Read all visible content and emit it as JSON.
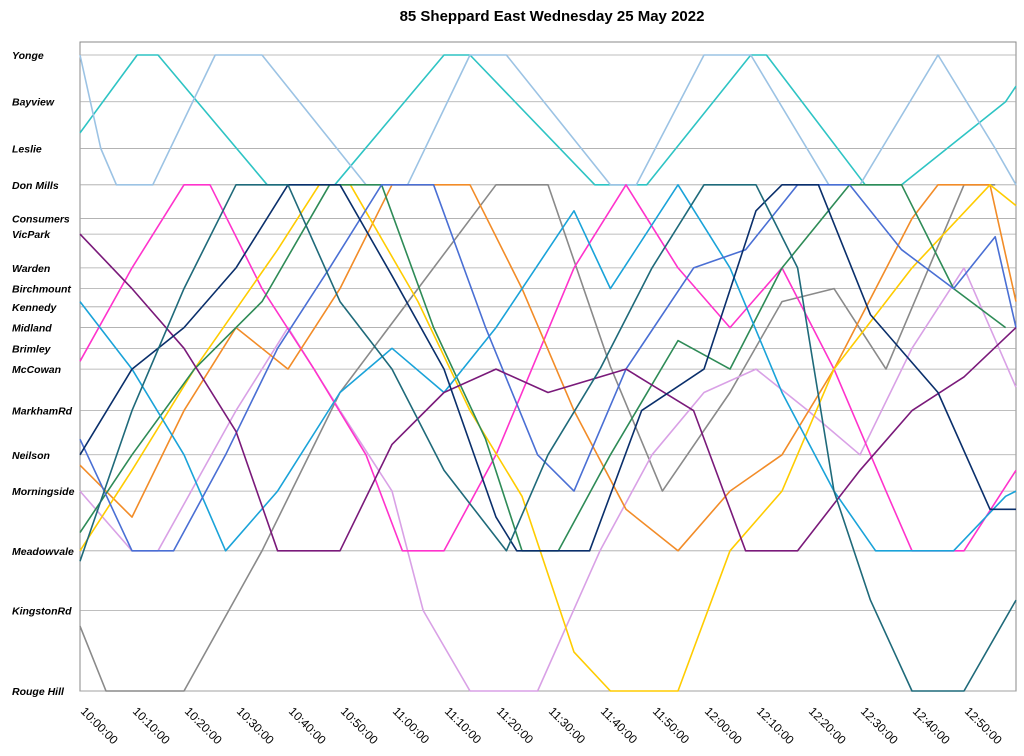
{
  "chart_data": {
    "type": "line",
    "title": "85 Sheppard East Wednesday 25 May 2022",
    "xlabel": "",
    "ylabel": "",
    "x_range": [
      "10:00:00",
      "13:00:00"
    ],
    "x_ticks": [
      "10:00:00",
      "10:10:00",
      "10:20:00",
      "10:30:00",
      "10:40:00",
      "10:50:00",
      "11:00:00",
      "11:10:00",
      "11:20:00",
      "11:30:00",
      "11:40:00",
      "11:50:00",
      "12:00:00",
      "12:10:00",
      "12:20:00",
      "12:30:00",
      "12:40:00",
      "12:50:00"
    ],
    "stops": [
      {
        "name": "Yonge",
        "km": 0.0
      },
      {
        "name": "Bayview",
        "km": 1.8
      },
      {
        "name": "Leslie",
        "km": 3.6
      },
      {
        "name": "Don Mills",
        "km": 5.0
      },
      {
        "name": "Consumers",
        "km": 6.3
      },
      {
        "name": "VicPark",
        "km": 6.9
      },
      {
        "name": "Warden",
        "km": 8.2
      },
      {
        "name": "Birchmount",
        "km": 9.0
      },
      {
        "name": "Kennedy",
        "km": 9.7
      },
      {
        "name": "Midland",
        "km": 10.5
      },
      {
        "name": "Brimley",
        "km": 11.3
      },
      {
        "name": "McCowan",
        "km": 12.1
      },
      {
        "name": "MarkhamRd",
        "km": 13.7
      },
      {
        "name": "Neilson",
        "km": 15.4
      },
      {
        "name": "Morningside",
        "km": 16.8
      },
      {
        "name": "Meadowvale",
        "km": 19.1
      },
      {
        "name": "KingstonRd",
        "km": 21.4
      },
      {
        "name": "Rouge Hill",
        "km": 24.5
      }
    ],
    "y_range": [
      0,
      24.5
    ],
    "y_reversed": true,
    "grid": {
      "horizontal": true,
      "vertical": false
    },
    "legend": "none",
    "series": [
      {
        "color": "#2ec4c4",
        "points": [
          [
            "09:52",
            3.0
          ],
          [
            "10:11",
            0
          ],
          [
            "10:15",
            0
          ],
          [
            "10:36",
            5.0
          ],
          [
            "10:49",
            5.0
          ],
          [
            "11:10",
            0
          ],
          [
            "11:15",
            0
          ],
          [
            "11:39",
            5.0
          ],
          [
            "11:49",
            5.0
          ],
          [
            "12:09",
            0
          ],
          [
            "12:12",
            0
          ],
          [
            "12:31",
            5.0
          ],
          [
            "12:38",
            5.0
          ],
          [
            "12:58",
            1.8
          ],
          [
            "13:02",
            1.2
          ]
        ]
      },
      {
        "color": "#9cc3e4",
        "points": [
          [
            "09:52",
            0
          ],
          [
            "10:04",
            3.6
          ],
          [
            "10:07",
            5.0
          ],
          [
            "10:14",
            5.0
          ],
          [
            "10:26",
            0
          ],
          [
            "10:35",
            0
          ],
          [
            "10:55",
            5.0
          ],
          [
            "11:03",
            5.0
          ],
          [
            "11:15",
            0
          ],
          [
            "11:22",
            0
          ],
          [
            "11:42",
            5.0
          ],
          [
            "11:47",
            5.0
          ],
          [
            "12:00",
            0
          ],
          [
            "12:09",
            0
          ],
          [
            "12:24",
            5.0
          ],
          [
            "12:30",
            5.0
          ],
          [
            "12:45",
            0
          ],
          [
            "12:56",
            3.6
          ],
          [
            "13:00",
            5.0
          ]
        ]
      },
      {
        "color": "#8a8a8a",
        "points": [
          [
            "09:58",
            22.0
          ],
          [
            "10:05",
            24.5
          ],
          [
            "10:20",
            24.5
          ],
          [
            "10:35",
            19.1
          ],
          [
            "10:50",
            13.0
          ],
          [
            "11:05",
            9.0
          ],
          [
            "11:20",
            5.0
          ],
          [
            "11:30",
            5.0
          ],
          [
            "11:42",
            12.0
          ],
          [
            "11:52",
            16.8
          ],
          [
            "12:05",
            13.0
          ],
          [
            "12:15",
            9.5
          ],
          [
            "12:25",
            9.0
          ],
          [
            "12:35",
            12.1
          ],
          [
            "12:50",
            5.0
          ],
          [
            "12:56",
            5.0
          ]
        ]
      },
      {
        "color": "#d9a1e6",
        "points": [
          [
            "09:58",
            16.8
          ],
          [
            "10:10",
            19.1
          ],
          [
            "10:15",
            19.1
          ],
          [
            "10:30",
            13.7
          ],
          [
            "10:40",
            10.5
          ],
          [
            "10:50",
            13.7
          ],
          [
            "11:00",
            16.8
          ],
          [
            "11:06",
            21.4
          ],
          [
            "11:15",
            24.5
          ],
          [
            "11:28",
            24.5
          ],
          [
            "11:40",
            19.1
          ],
          [
            "11:50",
            15.4
          ],
          [
            "12:00",
            13.0
          ],
          [
            "12:10",
            12.1
          ],
          [
            "12:20",
            13.7
          ],
          [
            "12:30",
            15.4
          ],
          [
            "12:40",
            11.3
          ],
          [
            "12:50",
            8.2
          ],
          [
            "13:00",
            12.8
          ]
        ]
      },
      {
        "color": "#ff33cc",
        "points": [
          [
            "10:00",
            11.8
          ],
          [
            "10:10",
            8.2
          ],
          [
            "10:20",
            5.0
          ],
          [
            "10:25",
            5.0
          ],
          [
            "10:35",
            9.0
          ],
          [
            "10:45",
            12.1
          ],
          [
            "10:55",
            15.4
          ],
          [
            "11:02",
            19.1
          ],
          [
            "11:10",
            19.1
          ],
          [
            "11:20",
            15.4
          ],
          [
            "11:35",
            8.2
          ],
          [
            "11:45",
            5.0
          ],
          [
            "11:55",
            8.2
          ],
          [
            "12:05",
            10.5
          ],
          [
            "12:15",
            8.2
          ],
          [
            "12:25",
            12.1
          ],
          [
            "12:35",
            16.8
          ],
          [
            "12:40",
            19.1
          ],
          [
            "12:50",
            19.1
          ],
          [
            "13:00",
            16.0
          ]
        ]
      },
      {
        "color": "#f28c28",
        "points": [
          [
            "10:00",
            15.8
          ],
          [
            "10:10",
            17.8
          ],
          [
            "10:20",
            13.7
          ],
          [
            "10:30",
            10.5
          ],
          [
            "10:40",
            12.1
          ],
          [
            "10:50",
            9.0
          ],
          [
            "11:00",
            5.0
          ],
          [
            "11:15",
            5.0
          ],
          [
            "11:25",
            9.0
          ],
          [
            "11:35",
            13.7
          ],
          [
            "11:45",
            17.5
          ],
          [
            "11:55",
            19.1
          ],
          [
            "12:05",
            16.8
          ],
          [
            "12:15",
            15.4
          ],
          [
            "12:25",
            12.1
          ],
          [
            "12:40",
            6.3
          ],
          [
            "12:45",
            5.0
          ],
          [
            "12:55",
            5.0
          ],
          [
            "13:00",
            9.5
          ]
        ]
      },
      {
        "color": "#ffcc00",
        "points": [
          [
            "10:00",
            19.1
          ],
          [
            "10:10",
            16.0
          ],
          [
            "10:22",
            12.1
          ],
          [
            "10:38",
            7.5
          ],
          [
            "10:46",
            5.0
          ],
          [
            "10:52",
            5.0
          ],
          [
            "11:05",
            9.5
          ],
          [
            "11:15",
            13.7
          ],
          [
            "11:25",
            17.0
          ],
          [
            "11:35",
            23.0
          ],
          [
            "11:42",
            24.5
          ],
          [
            "11:55",
            24.5
          ],
          [
            "12:05",
            19.1
          ],
          [
            "12:15",
            16.8
          ],
          [
            "12:25",
            12.1
          ],
          [
            "12:40",
            8.2
          ],
          [
            "12:55",
            5.0
          ],
          [
            "13:00",
            5.8
          ]
        ]
      },
      {
        "color": "#2e8b57",
        "points": [
          [
            "10:00",
            18.4
          ],
          [
            "10:10",
            15.4
          ],
          [
            "10:22",
            12.1
          ],
          [
            "10:35",
            9.5
          ],
          [
            "10:48",
            5.0
          ],
          [
            "10:58",
            5.0
          ],
          [
            "11:08",
            10.5
          ],
          [
            "11:18",
            14.8
          ],
          [
            "11:25",
            19.1
          ],
          [
            "11:32",
            19.1
          ],
          [
            "11:42",
            15.4
          ],
          [
            "11:55",
            11.0
          ],
          [
            "12:05",
            12.1
          ],
          [
            "12:15",
            8.2
          ],
          [
            "12:28",
            5.0
          ],
          [
            "12:38",
            5.0
          ],
          [
            "12:48",
            9.0
          ],
          [
            "12:58",
            10.5
          ]
        ]
      },
      {
        "color": "#1aa3d9",
        "points": [
          [
            "10:00",
            9.5
          ],
          [
            "10:10",
            12.1
          ],
          [
            "10:20",
            15.4
          ],
          [
            "10:28",
            19.1
          ],
          [
            "10:38",
            16.8
          ],
          [
            "10:50",
            13.0
          ],
          [
            "11:00",
            11.3
          ],
          [
            "11:10",
            13.0
          ],
          [
            "11:20",
            10.5
          ],
          [
            "11:35",
            6.0
          ],
          [
            "11:42",
            9.0
          ],
          [
            "11:55",
            5.0
          ],
          [
            "12:05",
            8.2
          ],
          [
            "12:15",
            13.0
          ],
          [
            "12:25",
            16.8
          ],
          [
            "12:33",
            19.1
          ],
          [
            "12:48",
            19.1
          ],
          [
            "12:58",
            17.0
          ],
          [
            "13:00",
            16.8
          ]
        ]
      },
      {
        "color": "#4a6fd4",
        "points": [
          [
            "10:00",
            14.8
          ],
          [
            "10:10",
            19.1
          ],
          [
            "10:18",
            19.1
          ],
          [
            "10:28",
            15.4
          ],
          [
            "10:38",
            11.3
          ],
          [
            "10:48",
            8.2
          ],
          [
            "10:58",
            5.0
          ],
          [
            "11:08",
            5.0
          ],
          [
            "11:18",
            10.5
          ],
          [
            "11:28",
            15.4
          ],
          [
            "11:35",
            16.8
          ],
          [
            "11:45",
            12.1
          ],
          [
            "11:58",
            8.2
          ],
          [
            "12:08",
            7.5
          ],
          [
            "12:18",
            5.0
          ],
          [
            "12:28",
            5.0
          ],
          [
            "12:38",
            7.5
          ],
          [
            "12:48",
            9.0
          ],
          [
            "12:56",
            7.0
          ],
          [
            "13:00",
            10.5
          ]
        ]
      },
      {
        "color": "#7a1a7a",
        "points": [
          [
            "10:00",
            6.9
          ],
          [
            "10:10",
            9.0
          ],
          [
            "10:20",
            11.3
          ],
          [
            "10:30",
            14.5
          ],
          [
            "10:38",
            19.1
          ],
          [
            "10:50",
            19.1
          ],
          [
            "11:00",
            15.0
          ],
          [
            "11:10",
            13.0
          ],
          [
            "11:20",
            12.1
          ],
          [
            "11:30",
            13.0
          ],
          [
            "11:45",
            12.1
          ],
          [
            "11:58",
            13.7
          ],
          [
            "12:08",
            19.1
          ],
          [
            "12:18",
            19.1
          ],
          [
            "12:30",
            16.0
          ],
          [
            "12:40",
            13.7
          ],
          [
            "12:50",
            12.4
          ],
          [
            "13:00",
            10.5
          ]
        ]
      },
      {
        "color": "#0a2f6b",
        "points": [
          [
            "10:00",
            15.4
          ],
          [
            "10:10",
            12.1
          ],
          [
            "10:20",
            10.5
          ],
          [
            "10:30",
            8.2
          ],
          [
            "10:40",
            5.0
          ],
          [
            "10:50",
            5.0
          ],
          [
            "11:00",
            8.5
          ],
          [
            "11:10",
            12.1
          ],
          [
            "11:20",
            17.8
          ],
          [
            "11:24",
            19.1
          ],
          [
            "11:38",
            19.1
          ],
          [
            "11:48",
            13.7
          ],
          [
            "12:00",
            12.1
          ],
          [
            "12:10",
            6.0
          ],
          [
            "12:15",
            5.0
          ],
          [
            "12:22",
            5.0
          ],
          [
            "12:32",
            10.0
          ],
          [
            "12:45",
            13.0
          ],
          [
            "12:55",
            17.5
          ],
          [
            "13:00",
            17.5
          ]
        ]
      },
      {
        "color": "#1f6a7a",
        "points": [
          [
            "10:00",
            19.5
          ],
          [
            "10:10",
            13.7
          ],
          [
            "10:20",
            9.0
          ],
          [
            "10:30",
            5.0
          ],
          [
            "10:40",
            5.0
          ],
          [
            "10:50",
            9.5
          ],
          [
            "11:00",
            12.1
          ],
          [
            "11:10",
            16.0
          ],
          [
            "11:22",
            19.1
          ],
          [
            "11:30",
            15.4
          ],
          [
            "11:40",
            12.1
          ],
          [
            "11:50",
            8.2
          ],
          [
            "12:00",
            5.0
          ],
          [
            "12:10",
            5.0
          ],
          [
            "12:18",
            8.2
          ],
          [
            "12:25",
            16.8
          ],
          [
            "12:32",
            21.0
          ],
          [
            "12:40",
            24.5
          ],
          [
            "12:50",
            24.5
          ],
          [
            "13:00",
            21.0
          ]
        ]
      }
    ]
  }
}
